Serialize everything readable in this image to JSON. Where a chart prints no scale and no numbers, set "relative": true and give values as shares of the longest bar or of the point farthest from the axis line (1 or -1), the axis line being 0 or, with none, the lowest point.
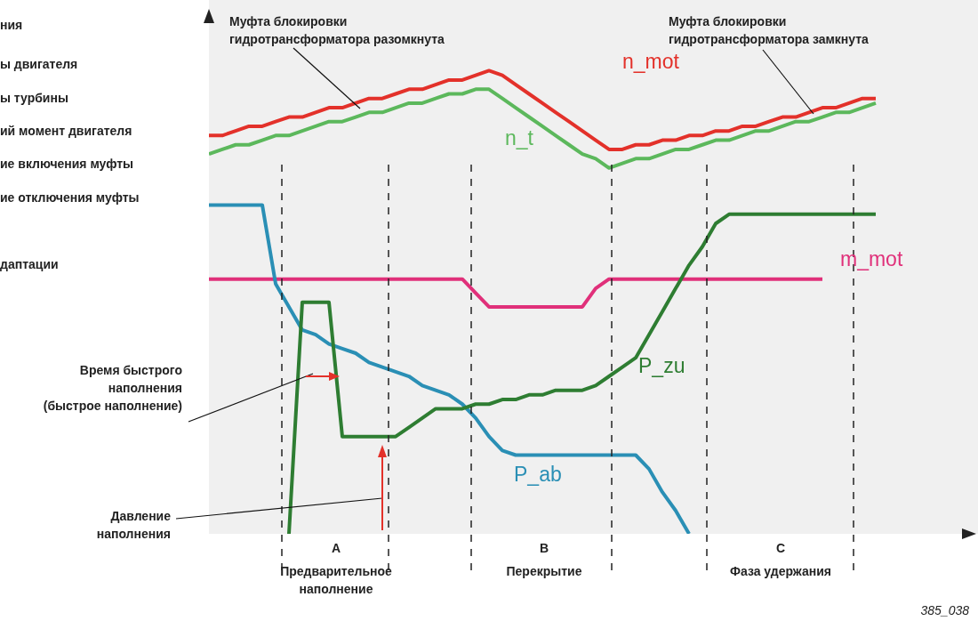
{
  "chart_data": {
    "type": "line",
    "relative": true,
    "marker": "none",
    "line_style": "solid",
    "categories": [
      null,
      null,
      null,
      null,
      null,
      null,
      null,
      null,
      null,
      null,
      null,
      null,
      null,
      null,
      null,
      null,
      null,
      null,
      null,
      null,
      null,
      null,
      null,
      null,
      null,
      null,
      null,
      null,
      null,
      null,
      null,
      null,
      null,
      null,
      null,
      null,
      null,
      null,
      null,
      null,
      null,
      null,
      null,
      null,
      null,
      null,
      null,
      null,
      null,
      null,
      null,
      null,
      null,
      null,
      null,
      null,
      null,
      null
    ],
    "series": [
      {
        "name": "n_mot",
        "color": "#e3312a",
        "values": [
          0.86,
          0.86,
          0.87,
          0.88,
          0.88,
          0.89,
          0.9,
          0.9,
          0.91,
          0.92,
          0.92,
          0.93,
          0.94,
          0.94,
          0.95,
          0.96,
          0.96,
          0.97,
          0.98,
          0.98,
          0.99,
          1.0,
          0.99,
          0.97,
          0.95,
          0.93,
          0.91,
          0.89,
          0.87,
          0.85,
          0.83,
          0.83,
          0.84,
          0.84,
          0.85,
          0.85,
          0.86,
          0.86,
          0.87,
          0.87,
          0.88,
          0.88,
          0.89,
          0.9,
          0.9,
          0.91,
          0.92,
          0.92,
          0.93,
          0.94,
          0.94,
          null,
          null,
          null,
          null,
          null,
          null,
          null
        ]
      },
      {
        "name": "n_t",
        "color": "#5cb85c",
        "values": [
          0.82,
          0.83,
          0.84,
          0.84,
          0.85,
          0.86,
          0.86,
          0.87,
          0.88,
          0.89,
          0.89,
          0.9,
          0.91,
          0.91,
          0.92,
          0.93,
          0.93,
          0.94,
          0.95,
          0.95,
          0.96,
          0.96,
          0.94,
          0.92,
          0.9,
          0.88,
          0.86,
          0.84,
          0.82,
          0.81,
          0.79,
          0.8,
          0.81,
          0.81,
          0.82,
          0.83,
          0.83,
          0.84,
          0.85,
          0.85,
          0.86,
          0.87,
          0.87,
          0.88,
          0.89,
          0.89,
          0.9,
          0.91,
          0.91,
          0.92,
          0.93,
          null,
          null,
          null,
          null,
          null,
          null,
          null
        ]
      },
      {
        "name": "m_mot",
        "color": "#e0307a",
        "values": [
          0.55,
          0.55,
          0.55,
          0.55,
          0.55,
          0.55,
          0.55,
          0.55,
          0.55,
          0.55,
          0.55,
          0.55,
          0.55,
          0.55,
          0.55,
          0.55,
          0.55,
          0.55,
          0.55,
          0.55,
          0.52,
          0.49,
          0.49,
          0.49,
          0.49,
          0.49,
          0.49,
          0.49,
          0.49,
          0.53,
          0.55,
          0.55,
          0.55,
          0.55,
          0.55,
          0.55,
          0.55,
          0.55,
          0.55,
          0.55,
          0.55,
          0.55,
          0.55,
          0.55,
          0.55,
          0.55,
          0.55,
          null,
          null,
          null,
          null,
          null,
          null,
          null,
          null,
          null,
          null,
          null
        ]
      },
      {
        "name": "P_ab",
        "color": "#2a8fb5",
        "values": [
          0.71,
          0.71,
          0.71,
          0.71,
          0.71,
          0.54,
          0.49,
          0.44,
          0.43,
          0.41,
          0.4,
          0.39,
          0.37,
          0.36,
          0.35,
          0.34,
          0.32,
          0.31,
          0.3,
          0.28,
          0.25,
          0.21,
          0.18,
          0.17,
          0.17,
          0.17,
          0.17,
          0.17,
          0.17,
          0.17,
          0.17,
          0.17,
          0.17,
          0.14,
          0.09,
          0.05,
          0,
          null,
          null,
          null,
          null,
          null,
          null,
          null,
          null,
          null,
          null,
          null,
          null,
          null,
          null,
          null,
          null,
          null,
          null,
          null,
          null,
          null
        ]
      },
      {
        "name": "P_zu",
        "color": "#2e7d32",
        "values": [
          null,
          null,
          null,
          null,
          null,
          null,
          0,
          0.5,
          0.5,
          0.5,
          0.21,
          0.21,
          0.21,
          0.21,
          0.21,
          0.23,
          0.25,
          0.27,
          0.27,
          0.27,
          0.28,
          0.28,
          0.29,
          0.29,
          0.3,
          0.3,
          0.31,
          0.31,
          0.31,
          0.32,
          0.34,
          0.36,
          0.38,
          0.43,
          0.48,
          0.53,
          0.58,
          0.62,
          0.67,
          0.69,
          0.69,
          0.69,
          0.69,
          0.69,
          0.69,
          0.69,
          0.69,
          0.69,
          0.69,
          0.69,
          0.69,
          null,
          null,
          null,
          null,
          null,
          null,
          null
        ]
      }
    ],
    "annotations": [
      "Муфта блокировки\nгидротрансформатора разомкнута",
      "Муфта блокировки\nгидротрансформатора замкнута",
      "Время быстрого\nнаполнения\n(быстрое наполнение)",
      "Давление\nнаполнения",
      "ния",
      "ы двигателя",
      "ы турбины",
      "ий момент двигателя",
      "ие включения муфты",
      "ие отключения муфты",
      "даптации",
      "385_038",
      "Предварительное\nнаполнение",
      "Перекрытие",
      "Фаза удержания",
      "A",
      "B",
      "C"
    ]
  }
}
